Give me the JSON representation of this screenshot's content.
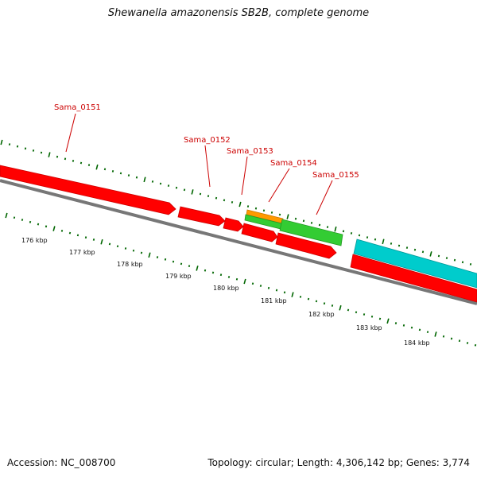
{
  "title": "Shewanella amazonensis SB2B, complete genome",
  "footer": {
    "accession": "Accession: NC_008700",
    "summary": "Topology: circular; Length: 4,306,142 bp; Genes: 3,774"
  },
  "colors": {
    "gene_red": "#ff0000",
    "gene_green": "#33cc33",
    "gene_orange": "#ff9900",
    "gene_cyan": "#00cccc",
    "backbone": "#777777",
    "tick": "#006600",
    "label": "#cc0000"
  },
  "gene_labels": [
    {
      "name": "Sama_0151"
    },
    {
      "name": "Sama_0152"
    },
    {
      "name": "Sama_0153"
    },
    {
      "name": "Sama_0154"
    },
    {
      "name": "Sama_0155"
    }
  ],
  "kbp_labels": [
    "176 kbp",
    "177 kbp",
    "178 kbp",
    "179 kbp",
    "180 kbp",
    "181 kbp",
    "182 kbp",
    "183 kbp",
    "184 kbp"
  ]
}
